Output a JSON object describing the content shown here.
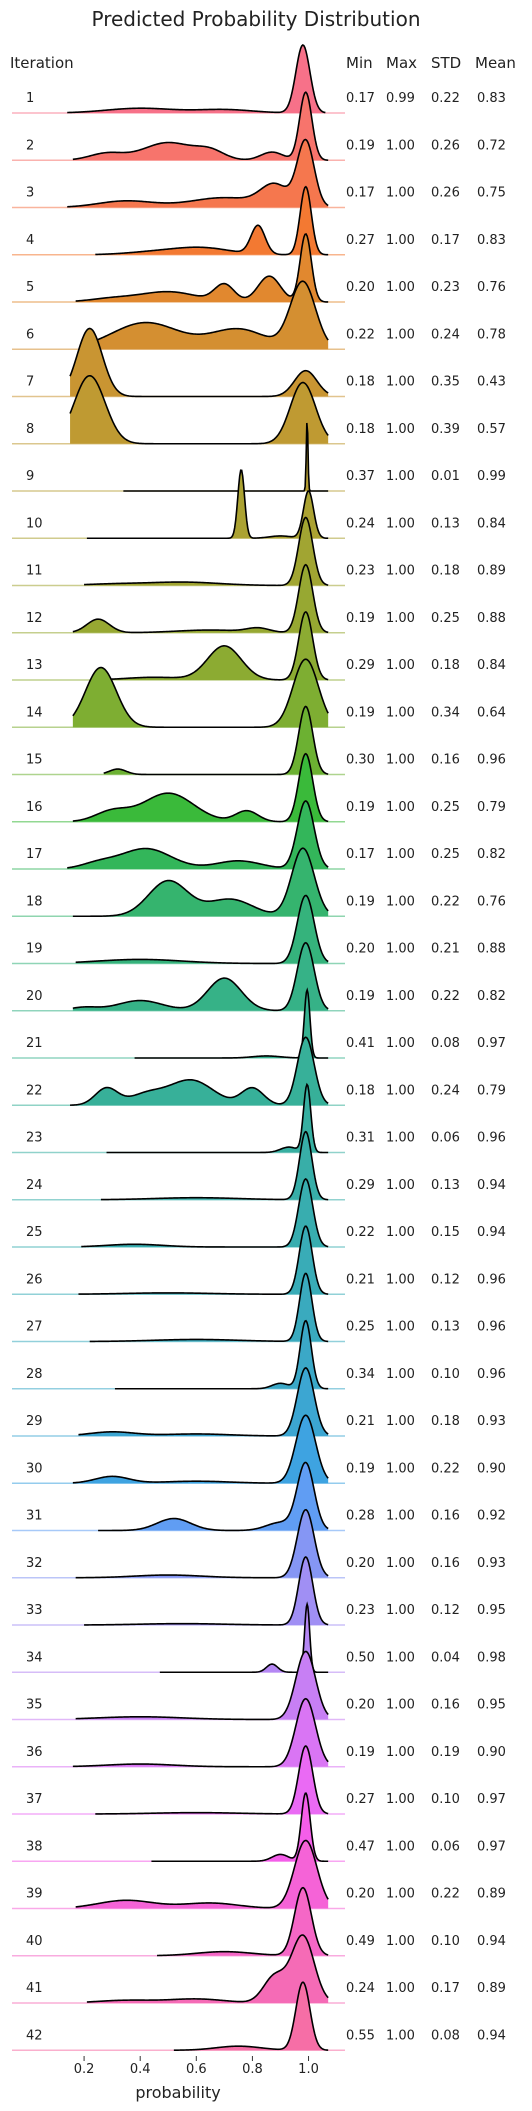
{
  "chart_data": {
    "type": "ridgeline",
    "title": "Predicted Probability Distribution",
    "row_header": "Iteration",
    "stat_headers": [
      "Min",
      "Max",
      "STD",
      "Mean"
    ],
    "xlabel": "probability",
    "xlim": [
      0.05,
      1.13
    ],
    "xticks": [
      0.2,
      0.4,
      0.6,
      0.8,
      1.0
    ],
    "xtick_labels": [
      "0.2",
      "0.4",
      "0.6",
      "0.8",
      "1.0"
    ],
    "rows": [
      {
        "label": "1",
        "min": "0.17",
        "max": "0.99",
        "std": "0.22",
        "mean": "0.83",
        "color": "#f77189"
      },
      {
        "label": "2",
        "min": "0.19",
        "max": "1.00",
        "std": "0.26",
        "mean": "0.72",
        "color": "#f7746c"
      },
      {
        "label": "3",
        "min": "0.17",
        "max": "1.00",
        "std": "0.26",
        "mean": "0.75",
        "color": "#f5774e"
      },
      {
        "label": "4",
        "min": "0.27",
        "max": "1.00",
        "std": "0.17",
        "mean": "0.83",
        "color": "#f37932"
      },
      {
        "label": "5",
        "min": "0.20",
        "max": "1.00",
        "std": "0.23",
        "mean": "0.76",
        "color": "#e1882f"
      },
      {
        "label": "6",
        "min": "0.22",
        "max": "1.00",
        "std": "0.24",
        "mean": "0.78",
        "color": "#d48f31"
      },
      {
        "label": "7",
        "min": "0.18",
        "max": "1.00",
        "std": "0.35",
        "mean": "0.43",
        "color": "#c99532"
      },
      {
        "label": "8",
        "min": "0.18",
        "max": "1.00",
        "std": "0.39",
        "mean": "0.57",
        "color": "#bf9a32"
      },
      {
        "label": "9",
        "min": "0.37",
        "max": "1.00",
        "std": "0.01",
        "mean": "0.99",
        "color": "#b59e32"
      },
      {
        "label": "10",
        "min": "0.24",
        "max": "1.00",
        "std": "0.13",
        "mean": "0.84",
        "color": "#aba232"
      },
      {
        "label": "11",
        "min": "0.23",
        "max": "1.00",
        "std": "0.18",
        "mean": "0.89",
        "color": "#a1a532"
      },
      {
        "label": "12",
        "min": "0.19",
        "max": "1.00",
        "std": "0.25",
        "mean": "0.88",
        "color": "#97a832"
      },
      {
        "label": "13",
        "min": "0.29",
        "max": "1.00",
        "std": "0.18",
        "mean": "0.84",
        "color": "#8cab32"
      },
      {
        "label": "14",
        "min": "0.19",
        "max": "1.00",
        "std": "0.34",
        "mean": "0.64",
        "color": "#7eae32"
      },
      {
        "label": "15",
        "min": "0.30",
        "max": "1.00",
        "std": "0.16",
        "mean": "0.96",
        "color": "#6cb132"
      },
      {
        "label": "16",
        "min": "0.19",
        "max": "1.00",
        "std": "0.25",
        "mean": "0.79",
        "color": "#3aba3a"
      },
      {
        "label": "17",
        "min": "0.17",
        "max": "1.00",
        "std": "0.25",
        "mean": "0.82",
        "color": "#33b65a"
      },
      {
        "label": "18",
        "min": "0.19",
        "max": "1.00",
        "std": "0.22",
        "mean": "0.76",
        "color": "#35b46e"
      },
      {
        "label": "19",
        "min": "0.20",
        "max": "1.00",
        "std": "0.21",
        "mean": "0.88",
        "color": "#35b37c"
      },
      {
        "label": "20",
        "min": "0.19",
        "max": "1.00",
        "std": "0.22",
        "mean": "0.82",
        "color": "#36b287"
      },
      {
        "label": "21",
        "min": "0.41",
        "max": "1.00",
        "std": "0.08",
        "mean": "0.97",
        "color": "#36b190"
      },
      {
        "label": "22",
        "min": "0.18",
        "max": "1.00",
        "std": "0.24",
        "mean": "0.79",
        "color": "#37b099"
      },
      {
        "label": "23",
        "min": "0.31",
        "max": "1.00",
        "std": "0.06",
        "mean": "0.96",
        "color": "#37afa1"
      },
      {
        "label": "24",
        "min": "0.29",
        "max": "1.00",
        "std": "0.13",
        "mean": "0.94",
        "color": "#38aea8"
      },
      {
        "label": "25",
        "min": "0.22",
        "max": "1.00",
        "std": "0.15",
        "mean": "0.94",
        "color": "#38adaf"
      },
      {
        "label": "26",
        "min": "0.21",
        "max": "1.00",
        "std": "0.12",
        "mean": "0.96",
        "color": "#39acb7"
      },
      {
        "label": "27",
        "min": "0.25",
        "max": "1.00",
        "std": "0.13",
        "mean": "0.96",
        "color": "#3aaabe"
      },
      {
        "label": "28",
        "min": "0.34",
        "max": "1.00",
        "std": "0.10",
        "mean": "0.96",
        "color": "#3ba8c7"
      },
      {
        "label": "29",
        "min": "0.21",
        "max": "1.00",
        "std": "0.18",
        "mean": "0.93",
        "color": "#3ca6d2"
      },
      {
        "label": "30",
        "min": "0.19",
        "max": "1.00",
        "std": "0.22",
        "mean": "0.90",
        "color": "#3ea3e1"
      },
      {
        "label": "31",
        "min": "0.28",
        "max": "1.00",
        "std": "0.16",
        "mean": "0.92",
        "color": "#609df3"
      },
      {
        "label": "32",
        "min": "0.20",
        "max": "1.00",
        "std": "0.16",
        "mean": "0.93",
        "color": "#8596f4"
      },
      {
        "label": "33",
        "min": "0.23",
        "max": "1.00",
        "std": "0.12",
        "mean": "0.95",
        "color": "#a08ff4"
      },
      {
        "label": "34",
        "min": "0.50",
        "max": "1.00",
        "std": "0.04",
        "mean": "0.98",
        "color": "#b587f4"
      },
      {
        "label": "35",
        "min": "0.20",
        "max": "1.00",
        "std": "0.16",
        "mean": "0.95",
        "color": "#c77ff4"
      },
      {
        "label": "36",
        "min": "0.19",
        "max": "1.00",
        "std": "0.19",
        "mean": "0.90",
        "color": "#d975f4"
      },
      {
        "label": "37",
        "min": "0.27",
        "max": "1.00",
        "std": "0.10",
        "mean": "0.97",
        "color": "#ea6af4"
      },
      {
        "label": "38",
        "min": "0.47",
        "max": "1.00",
        "std": "0.06",
        "mean": "0.97",
        "color": "#f45ee9"
      },
      {
        "label": "39",
        "min": "0.20",
        "max": "1.00",
        "std": "0.22",
        "mean": "0.89",
        "color": "#f563d7"
      },
      {
        "label": "40",
        "min": "0.49",
        "max": "1.00",
        "std": "0.10",
        "mean": "0.94",
        "color": "#f567c6"
      },
      {
        "label": "41",
        "min": "0.24",
        "max": "1.00",
        "std": "0.17",
        "mean": "0.89",
        "color": "#f56bb6"
      },
      {
        "label": "42",
        "min": "0.55",
        "max": "1.00",
        "std": "0.08",
        "mean": "0.94",
        "color": "#f66ea6"
      }
    ]
  }
}
